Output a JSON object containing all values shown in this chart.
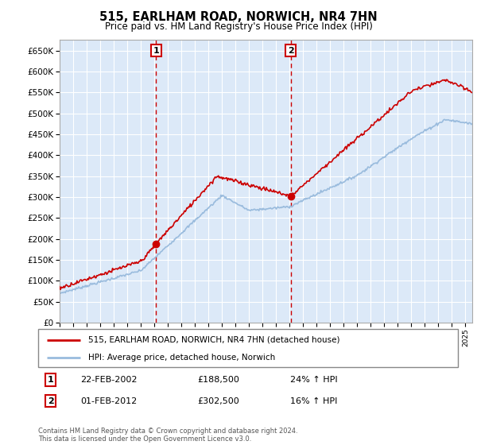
{
  "title": "515, EARLHAM ROAD, NORWICH, NR4 7HN",
  "subtitle": "Price paid vs. HM Land Registry's House Price Index (HPI)",
  "ylabel_ticks": [
    "£0",
    "£50K",
    "£100K",
    "£150K",
    "£200K",
    "£250K",
    "£300K",
    "£350K",
    "£400K",
    "£450K",
    "£500K",
    "£550K",
    "£600K",
    "£650K"
  ],
  "ytick_values": [
    0,
    50000,
    100000,
    150000,
    200000,
    250000,
    300000,
    350000,
    400000,
    450000,
    500000,
    550000,
    600000,
    650000
  ],
  "ylim": [
    0,
    675000
  ],
  "sale1_year": 2002.12,
  "sale1_price": 188500,
  "sale2_year": 2012.08,
  "sale2_price": 302500,
  "sale1_date": "22-FEB-2002",
  "sale1_hpi": "24% ↑ HPI",
  "sale2_date": "01-FEB-2012",
  "sale2_hpi": "16% ↑ HPI",
  "legend_red": "515, EARLHAM ROAD, NORWICH, NR4 7HN (detached house)",
  "legend_blue": "HPI: Average price, detached house, Norwich",
  "footer": "Contains HM Land Registry data © Crown copyright and database right 2024.\nThis data is licensed under the Open Government Licence v3.0.",
  "plot_bg": "#dce9f8",
  "grid_color": "#ffffff",
  "red_line_color": "#cc0000",
  "blue_line_color": "#99bbdd",
  "dashed_line_color": "#cc0000",
  "box_numeral_color": "#cc0000",
  "xlim_left": 1995,
  "xlim_right": 2025.5
}
